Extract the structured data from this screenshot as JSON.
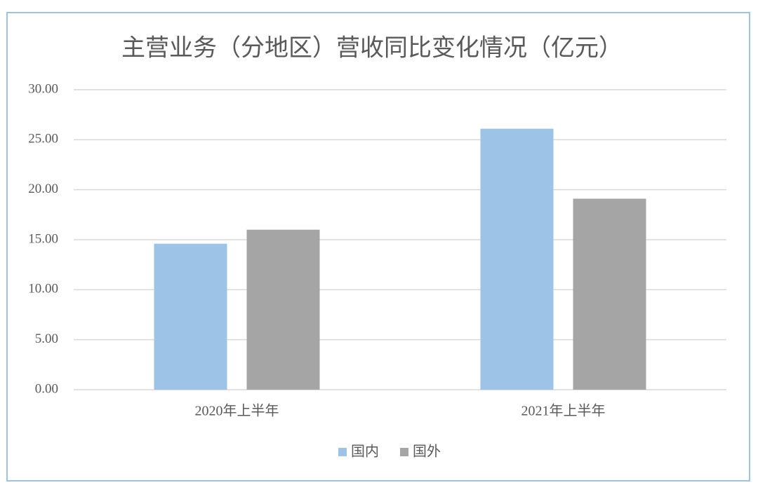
{
  "chart_data": {
    "type": "bar",
    "title": "主营业务（分地区）营收同比变化情况（亿元）",
    "categories": [
      "2020年上半年",
      "2021年上半年"
    ],
    "series": [
      {
        "name": "国内",
        "color": "#9dc3e6",
        "values": [
          14.6,
          26.1
        ]
      },
      {
        "name": "国外",
        "color": "#a5a5a5",
        "values": [
          16.0,
          19.1
        ]
      }
    ],
    "ylim": [
      0,
      30
    ],
    "yticks": [
      {
        "value": 0,
        "label": "0.00"
      },
      {
        "value": 5,
        "label": "5.00"
      },
      {
        "value": 10,
        "label": "10.00"
      },
      {
        "value": 15,
        "label": "15.00"
      },
      {
        "value": 20,
        "label": "20.00"
      },
      {
        "value": 25,
        "label": "25.00"
      },
      {
        "value": 30,
        "label": "30.00"
      }
    ],
    "grid": true,
    "legend": "bottom"
  }
}
